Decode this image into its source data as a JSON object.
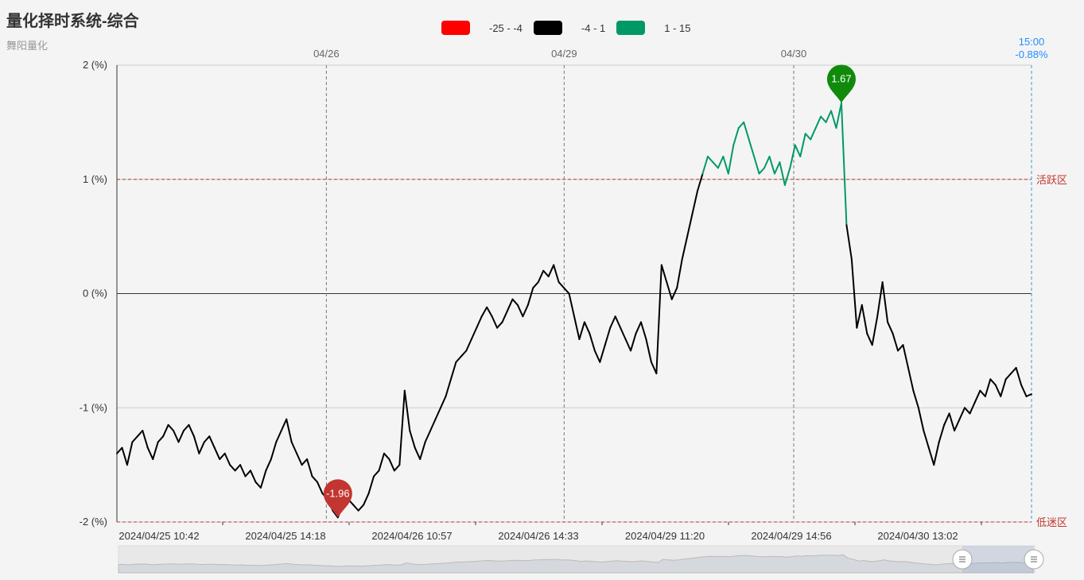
{
  "title": "量化择时系统-综合",
  "subtitle": "舞阳量化",
  "legend": [
    {
      "label": "-25 - -4",
      "color": "#ff0000"
    },
    {
      "label": "-4 - 1",
      "color": "#000000"
    },
    {
      "label": "1 - 15",
      "color": "#009966"
    }
  ],
  "chart_data": {
    "type": "line",
    "y_ticks": [
      "2 (%)",
      "1 (%)",
      "0 (%)",
      "-1 (%)",
      "-2 (%)"
    ],
    "y_tick_values": [
      2,
      1,
      0,
      -1,
      -2
    ],
    "ylim": [
      -2,
      2
    ],
    "x_tick_labels": [
      "2024/04/25 10:42",
      "2024/04/25 14:18",
      "2024/04/26 10:57",
      "2024/04/26 14:33",
      "2024/04/29 11:20",
      "2024/04/29 14:56",
      "2024/04/30 13:02"
    ],
    "day_markers": [
      "04/26",
      "04/29",
      "04/30"
    ],
    "end_marker": {
      "time": "15:00",
      "value": "-0.88%"
    },
    "bands": [
      {
        "label": "活跃区",
        "value": 1
      },
      {
        "label": "低迷区",
        "value": -2
      }
    ],
    "max_pin": {
      "label": "1.67",
      "value": 1.67
    },
    "min_pin": {
      "label": "-1.96",
      "value": -1.96
    },
    "series": [
      {
        "values": [
          -1.4,
          -1.35,
          -1.5,
          -1.3,
          -1.25,
          -1.2,
          -1.35,
          -1.45,
          -1.3,
          -1.25,
          -1.15,
          -1.2,
          -1.3,
          -1.2,
          -1.15,
          -1.25,
          -1.4,
          -1.3,
          -1.25,
          -1.35,
          -1.45,
          -1.4,
          -1.5,
          -1.55,
          -1.5,
          -1.6,
          -1.55,
          -1.65,
          -1.7,
          -1.55,
          -1.45,
          -1.3,
          -1.2,
          -1.1,
          -1.3,
          -1.4,
          -1.5,
          -1.45,
          -1.6,
          -1.65,
          -1.75,
          -1.8,
          -1.9,
          -1.96,
          -1.85,
          -1.8,
          -1.85,
          -1.9,
          -1.85,
          -1.75,
          -1.6,
          -1.55,
          -1.4,
          -1.45,
          -1.55,
          -1.5,
          -0.85,
          -1.2,
          -1.35,
          -1.45,
          -1.3,
          -1.2,
          -1.1,
          -1.0,
          -0.9,
          -0.75,
          -0.6,
          -0.55,
          -0.5,
          -0.4,
          -0.3,
          -0.2,
          -0.12,
          -0.2,
          -0.3,
          -0.25,
          -0.15,
          -0.05,
          -0.1,
          -0.2,
          -0.1,
          0.05,
          0.1,
          0.2,
          0.15,
          0.25,
          0.1,
          0.05,
          0.0,
          -0.2,
          -0.4,
          -0.25,
          -0.35,
          -0.5,
          -0.6,
          -0.45,
          -0.3,
          -0.2,
          -0.3,
          -0.4,
          -0.5,
          -0.35,
          -0.25,
          -0.4,
          -0.6,
          -0.7,
          0.25,
          0.1,
          -0.05,
          0.05,
          0.3,
          0.5,
          0.7,
          0.9,
          1.05,
          1.2,
          1.15,
          1.1,
          1.2,
          1.05,
          1.3,
          1.45,
          1.5,
          1.35,
          1.2,
          1.05,
          1.1,
          1.2,
          1.05,
          1.15,
          0.95,
          1.1,
          1.3,
          1.2,
          1.4,
          1.35,
          1.45,
          1.55,
          1.5,
          1.6,
          1.45,
          1.67,
          0.6,
          0.3,
          -0.3,
          -0.1,
          -0.35,
          -0.45,
          -0.2,
          0.1,
          -0.25,
          -0.35,
          -0.5,
          -0.45,
          -0.65,
          -0.85,
          -1.0,
          -1.2,
          -1.35,
          -1.5,
          -1.3,
          -1.15,
          -1.05,
          -1.2,
          -1.1,
          -1.0,
          -1.05,
          -0.95,
          -0.85,
          -0.9,
          -0.75,
          -0.8,
          -0.9,
          -0.75,
          -0.7,
          -0.65,
          -0.8,
          -0.9,
          -0.88
        ]
      }
    ]
  },
  "dataZoom": {
    "handle_start_icon": "drag-handle-icon",
    "handle_end_icon": "drag-handle-icon"
  }
}
